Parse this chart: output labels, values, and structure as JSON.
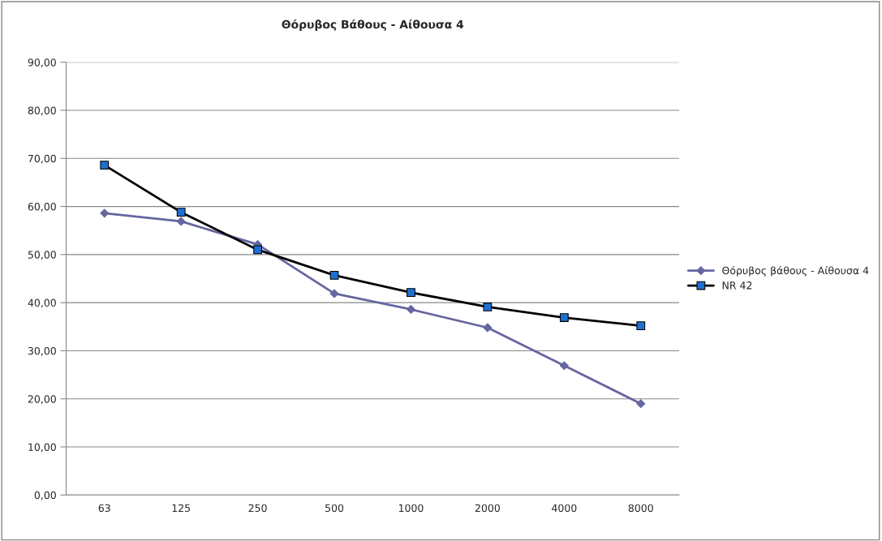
{
  "chart_data": {
    "type": "line",
    "title": "Θόρυβος Βάθους - Αίθουσα 4",
    "categories": [
      "63",
      "125",
      "250",
      "500",
      "1000",
      "2000",
      "4000",
      "8000"
    ],
    "series": [
      {
        "name": "Θόρυβος βάθους - Αίθουσα 4",
        "color": "#6666a0",
        "marker": "diamond",
        "values": [
          58.6,
          56.9,
          52.1,
          41.9,
          38.6,
          34.8,
          26.9,
          19.0
        ]
      },
      {
        "name": "NR 42",
        "color": "#000000",
        "marker": "square",
        "values": [
          68.6,
          58.8,
          51.0,
          45.7,
          42.1,
          39.1,
          36.9,
          35.2
        ]
      }
    ],
    "ylim": [
      0,
      90
    ],
    "yticks": [
      {
        "value": 0,
        "label": "0,00"
      },
      {
        "value": 10,
        "label": "10,00"
      },
      {
        "value": 20,
        "label": "20,00"
      },
      {
        "value": 30,
        "label": "30,00"
      },
      {
        "value": 40,
        "label": "40,00"
      },
      {
        "value": 50,
        "label": "50,00"
      },
      {
        "value": 60,
        "label": "60,00"
      },
      {
        "value": 70,
        "label": "70,00"
      },
      {
        "value": 80,
        "label": "80,00"
      },
      {
        "value": 90,
        "label": "90,00"
      }
    ],
    "grid": "y",
    "legend": "right"
  }
}
